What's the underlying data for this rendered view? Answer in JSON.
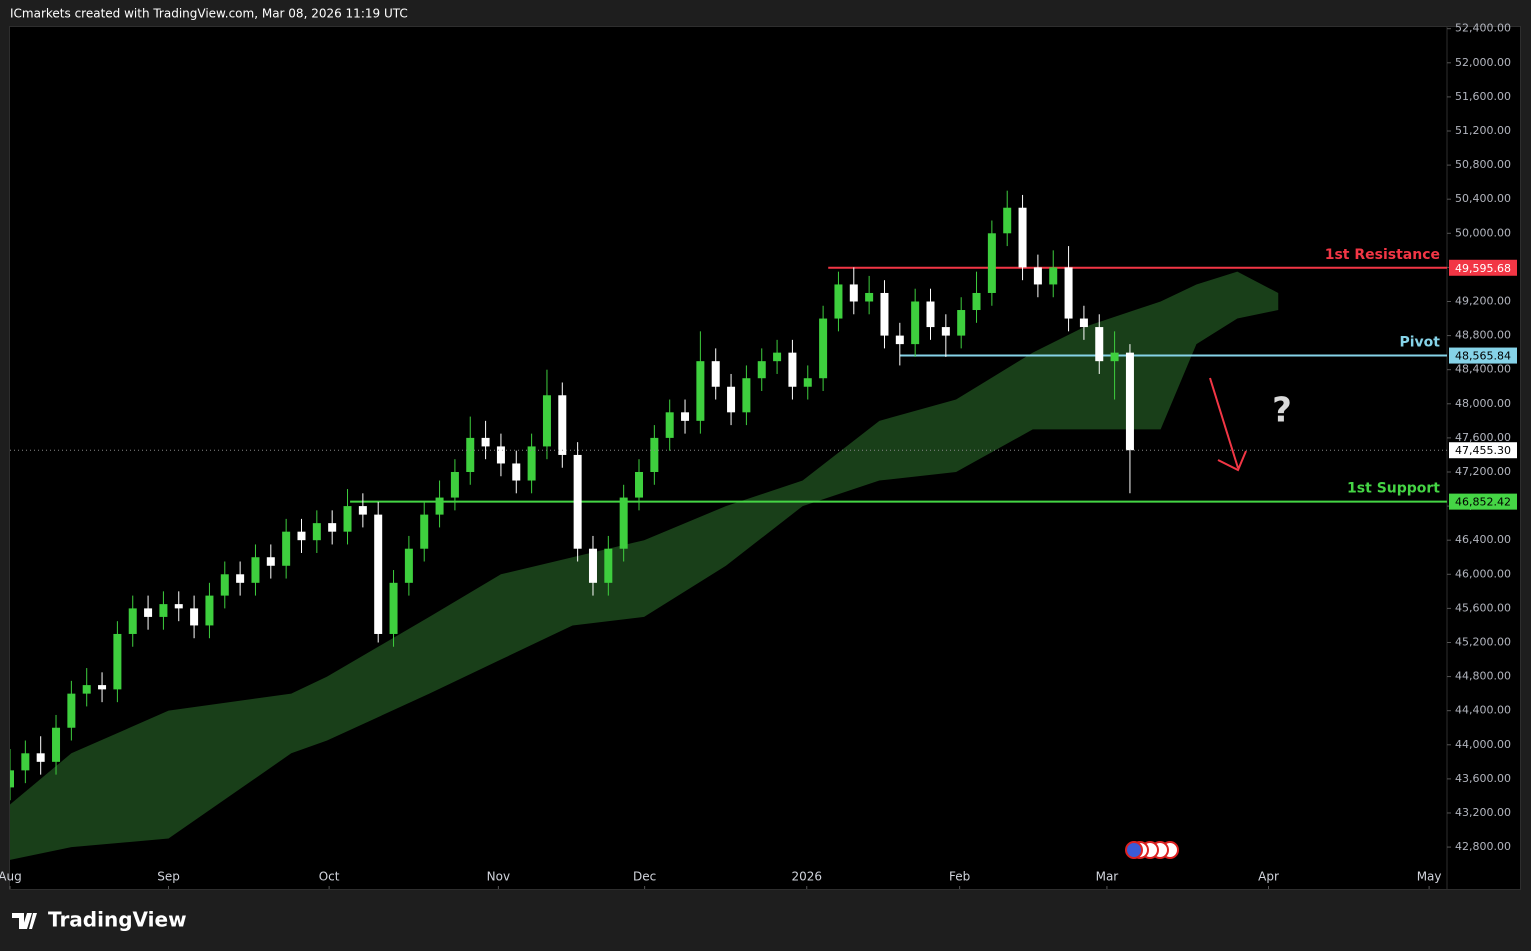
{
  "header": "ICmarkets created with TradingView.com, Mar 08, 2026 11:19 UTC",
  "footer_logo": "TradingView",
  "chart_data": {
    "type": "candlestick",
    "up_color": "#3ecf3e",
    "down_color": "#ffffff",
    "xlim": [
      0,
      281
    ],
    "xticks": [
      {
        "value": 0,
        "label": "Aug"
      },
      {
        "value": 31,
        "label": "Sep"
      },
      {
        "value": 62.4,
        "label": "Oct"
      },
      {
        "value": 95.5,
        "label": "Nov"
      },
      {
        "value": 124.1,
        "label": "Dec"
      },
      {
        "value": 155.8,
        "label": "2026"
      },
      {
        "value": 185.7,
        "label": "Feb"
      },
      {
        "value": 214.5,
        "label": "Mar"
      },
      {
        "value": 246.1,
        "label": "Apr"
      },
      {
        "value": 277.5,
        "label": "May"
      }
    ],
    "ylim": [
      42320,
      52420
    ],
    "yticks": [
      {
        "value": 42800,
        "label": "42,800.00"
      },
      {
        "value": 43200,
        "label": "43,200.00"
      },
      {
        "value": 43600,
        "label": "43,600.00"
      },
      {
        "value": 44000,
        "label": "44,000.00"
      },
      {
        "value": 44400,
        "label": "44,400.00"
      },
      {
        "value": 44800,
        "label": "44,800.00"
      },
      {
        "value": 45200,
        "label": "45,200.00"
      },
      {
        "value": 45600,
        "label": "45,600.00"
      },
      {
        "value": 46000,
        "label": "46,000.00"
      },
      {
        "value": 46400,
        "label": "46,400.00"
      },
      {
        "value": 46800,
        "label": "46,800.00"
      },
      {
        "value": 47200,
        "label": "47,200.00"
      },
      {
        "value": 47600,
        "label": "47,600.00"
      },
      {
        "value": 48000,
        "label": "48,000.00"
      },
      {
        "value": 48400,
        "label": "48,400.00"
      },
      {
        "value": 48800,
        "label": "48,800.00"
      },
      {
        "value": 49200,
        "label": "49,200.00"
      },
      {
        "value": 49600,
        "label": "49,600.00"
      },
      {
        "value": 50000,
        "label": "50,000.00"
      },
      {
        "value": 50400,
        "label": "50,400.00"
      },
      {
        "value": 50800,
        "label": "50,800.00"
      },
      {
        "value": 51200,
        "label": "51,200.00"
      },
      {
        "value": 51600,
        "label": "51,600.00"
      },
      {
        "value": 52000,
        "label": "52,000.00"
      },
      {
        "value": 52400,
        "label": "52,400.00"
      }
    ],
    "x": [
      0,
      3,
      6,
      9,
      12,
      15,
      18,
      21,
      24,
      27,
      30,
      33,
      36,
      39,
      42,
      45,
      48,
      51,
      54,
      57,
      60,
      63,
      66,
      69,
      72,
      75,
      78,
      81,
      84,
      87,
      90,
      93,
      96,
      99,
      102,
      105,
      108,
      111,
      114,
      117,
      120,
      123,
      126,
      129,
      132,
      135,
      138,
      141,
      144,
      147,
      150,
      153,
      156,
      159,
      162,
      165,
      168,
      171,
      174,
      177,
      180,
      183,
      186,
      189,
      192,
      195,
      198,
      201,
      204,
      207,
      210,
      213,
      216,
      219
    ],
    "open": [
      43500,
      43700,
      43900,
      43800,
      44200,
      44600,
      44700,
      44650,
      45300,
      45600,
      45500,
      45650,
      45600,
      45400,
      45750,
      46000,
      45900,
      46200,
      46100,
      46500,
      46400,
      46600,
      46500,
      46800,
      46700,
      45300,
      45900,
      46300,
      46700,
      46900,
      47200,
      47600,
      47500,
      47300,
      47100,
      47500,
      48100,
      47400,
      46300,
      45900,
      46300,
      46900,
      47200,
      47600,
      47900,
      47800,
      48500,
      48200,
      47900,
      48300,
      48500,
      48600,
      48200,
      48300,
      49000,
      49400,
      49200,
      49300,
      48800,
      48700,
      49200,
      48900,
      48800,
      49100,
      49300,
      50000,
      50300,
      49600,
      49400,
      49600,
      49000,
      48900,
      48500,
      48600
    ],
    "high": [
      43950,
      44050,
      44100,
      44350,
      44750,
      44900,
      44850,
      45450,
      45750,
      45750,
      45800,
      45800,
      45750,
      45900,
      46150,
      46150,
      46350,
      46350,
      46650,
      46650,
      46750,
      46750,
      47000,
      46950,
      46850,
      46050,
      46450,
      46850,
      47100,
      47350,
      47850,
      47800,
      47650,
      47450,
      47650,
      48400,
      48250,
      47550,
      46450,
      46450,
      47050,
      47350,
      47750,
      48050,
      48050,
      48850,
      48650,
      48350,
      48450,
      48650,
      48750,
      48750,
      48450,
      49150,
      49550,
      49600,
      49500,
      49450,
      48950,
      49350,
      49350,
      49050,
      49250,
      49550,
      50150,
      50500,
      50450,
      49750,
      49800,
      49850,
      49150,
      49050,
      48850,
      48700
    ],
    "low": [
      43350,
      43550,
      43650,
      43650,
      44050,
      44450,
      44500,
      44500,
      45150,
      45350,
      45350,
      45450,
      45250,
      45250,
      45600,
      45750,
      45750,
      45950,
      45950,
      46250,
      46250,
      46350,
      46350,
      46550,
      45200,
      45150,
      45750,
      46150,
      46550,
      46750,
      47050,
      47350,
      47150,
      46950,
      46950,
      47350,
      47250,
      46150,
      45750,
      45750,
      46150,
      46750,
      47050,
      47450,
      47650,
      47650,
      48050,
      47750,
      47750,
      48150,
      48350,
      48050,
      48050,
      48150,
      48850,
      49050,
      49050,
      48650,
      48450,
      48550,
      48750,
      48550,
      48650,
      48950,
      49150,
      49850,
      49450,
      49250,
      49250,
      48850,
      48750,
      48350,
      48050,
      46950
    ],
    "close": [
      43700,
      43900,
      43800,
      44200,
      44600,
      44700,
      44650,
      45300,
      45600,
      45500,
      45650,
      45600,
      45400,
      45750,
      46000,
      45900,
      46200,
      46100,
      46500,
      46400,
      46600,
      46500,
      46800,
      46700,
      45300,
      45900,
      46300,
      46700,
      46900,
      47200,
      47600,
      47500,
      47300,
      47100,
      47500,
      48100,
      47400,
      46300,
      45900,
      46300,
      46900,
      47200,
      47600,
      47900,
      47800,
      48500,
      48200,
      47900,
      48300,
      48500,
      48600,
      48200,
      48300,
      49000,
      49400,
      49200,
      49300,
      48800,
      48700,
      49200,
      48900,
      48800,
      49100,
      49300,
      50000,
      50300,
      49600,
      49400,
      49600,
      49000,
      48900,
      48500,
      48600,
      47455.3
    ],
    "cloud": {
      "color": "#1d4a1d",
      "x": [
        0,
        12,
        31,
        55,
        62,
        82,
        96,
        110,
        124,
        140,
        155,
        170,
        185,
        200,
        210,
        225,
        232,
        240,
        248
      ],
      "upper": [
        43300,
        43900,
        44400,
        44600,
        44800,
        45500,
        46000,
        46200,
        46400,
        46800,
        47100,
        47800,
        48050,
        48600,
        48900,
        49200,
        49400,
        49550,
        49300
      ],
      "lower": [
        42650,
        42800,
        42900,
        43900,
        44050,
        44600,
        45000,
        45400,
        45500,
        46100,
        46800,
        47100,
        47200,
        47700,
        47700,
        47700,
        48700,
        49000,
        49100
      ]
    },
    "levels": [
      {
        "name": "1st Resistance",
        "value": 49595.68,
        "label": "49,595.68",
        "color": "#f23645",
        "x_start": 160
      },
      {
        "name": "Pivot",
        "value": 48565.84,
        "label": "48,565.84",
        "color": "#86d3e8",
        "x_start": 174
      },
      {
        "name": "1st Support",
        "value": 46852.42,
        "label": "46,852.42",
        "color": "#45d545",
        "x_start": 66.5
      }
    ],
    "last_price": {
      "value": 47455.3,
      "label": "47,455.30"
    },
    "annotation": "?"
  }
}
